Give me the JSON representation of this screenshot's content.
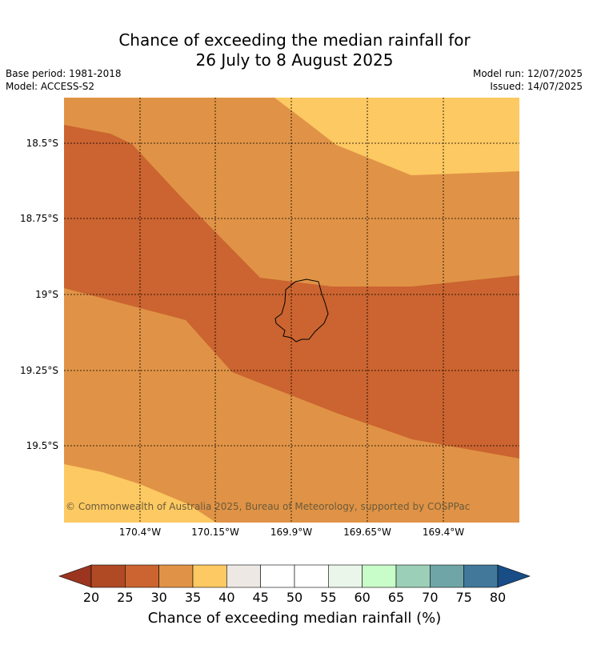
{
  "title_line1": "Chance of exceeding the median rainfall for",
  "title_line2": "26 July to 8 August 2025",
  "base_period": "Base period: 1981-2018",
  "model": "Model: ACCESS-S2",
  "model_run": "Model run: 12/07/2025",
  "issued": "Issued: 14/07/2025",
  "copyright": "© Commonwealth of Australia 2025, Bureau of Meteorology, supported by COSPPac",
  "lat_labels": [
    "18.5°S",
    "18.75°S",
    "19°S",
    "19.25°S",
    "19.5°S"
  ],
  "lon_labels": [
    "170.4°W",
    "170.15°W",
    "169.9°W",
    "169.65°W",
    "169.4°W"
  ],
  "colorbar": {
    "label": "Chance of exceeding median rainfall (%)",
    "ticks": [
      "20",
      "25",
      "30",
      "35",
      "40",
      "45",
      "50",
      "55",
      "60",
      "65",
      "70",
      "75",
      "80"
    ],
    "colors": [
      "#b04a24",
      "#cb6430",
      "#e09346",
      "#fdc962",
      "#ede8e3",
      "#ffffff",
      "#ffffff",
      "#e9f6e9",
      "#c8fcc8",
      "#9ccfb7",
      "#6fa5a6",
      "#42789a"
    ],
    "under_color": "#9b3520",
    "over_color": "#184d86"
  },
  "map_colors": {
    "c30": "#e09346",
    "c25": "#cb6430",
    "c35": "#fdc962"
  }
}
